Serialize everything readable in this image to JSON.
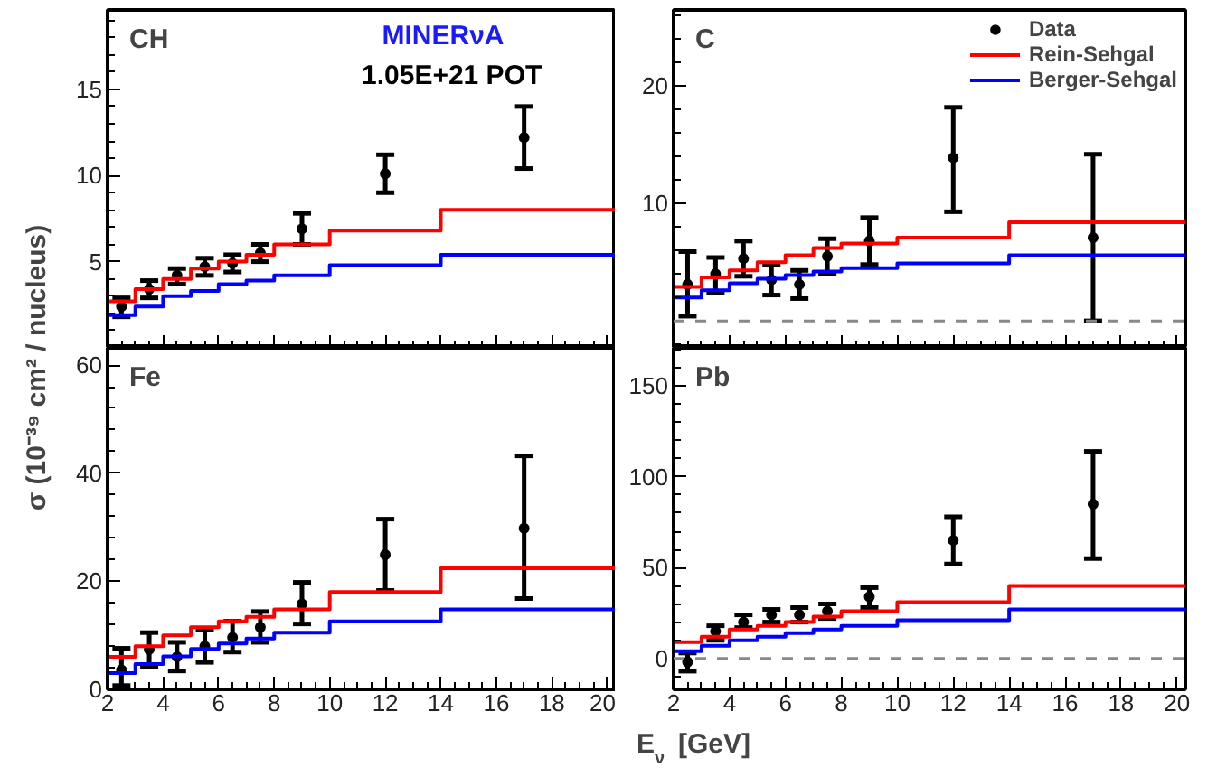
{
  "chart_data": [
    {
      "type": "step",
      "title": "CH",
      "annotations": [
        "MINERνA",
        "1.05E+21 POT"
      ],
      "xlabel": "E$_{ν}$ [GeV]",
      "ylabel": "σ (10⁻³⁹ cm² / nucleus)",
      "x": [
        2.5,
        3.5,
        4.5,
        5.5,
        6.5,
        7.5,
        9,
        12,
        17
      ],
      "xlim": [
        2,
        20.3
      ],
      "xticks": [
        2,
        4,
        6,
        8,
        10,
        12,
        14,
        16,
        18,
        20
      ],
      "ylim": [
        0,
        19.6
      ],
      "yticks": [
        5,
        10,
        15
      ],
      "tick_labels": "y",
      "grid": false,
      "legend": false,
      "series": [
        {
          "type": "scatter",
          "marker": "circle",
          "color": "#000000",
          "values": [
            2.4,
            3.4,
            4.2,
            4.7,
            4.9,
            5.5,
            6.9,
            10.1,
            12.2
          ],
          "errors": [
            [
              1.8,
              2.9
            ],
            [
              2.9,
              3.9
            ],
            [
              3.7,
              4.6
            ],
            [
              4.2,
              5.2
            ],
            [
              4.4,
              5.4
            ],
            [
              5.0,
              6.0
            ],
            [
              6.0,
              7.8
            ],
            [
              9.0,
              11.2
            ],
            [
              10.4,
              14.0
            ]
          ]
        },
        {
          "line_style": "solid",
          "color": "#ff0000",
          "x": [
            2,
            3,
            4,
            5,
            6,
            7,
            8,
            10,
            14,
            20.3
          ],
          "values": [
            2.7,
            3.4,
            4.0,
            4.6,
            5.0,
            5.4,
            6.0,
            6.8,
            8.0,
            8.0
          ]
        },
        {
          "line_style": "solid",
          "color": "#0000ff",
          "x": [
            2,
            3,
            4,
            5,
            6,
            7,
            8,
            10,
            14,
            20.3
          ],
          "values": [
            1.9,
            2.4,
            3.0,
            3.3,
            3.7,
            3.9,
            4.2,
            4.8,
            5.4,
            5.4
          ]
        }
      ]
    },
    {
      "type": "step",
      "title": "C",
      "x": [
        2.5,
        3.5,
        4.5,
        5.5,
        6.5,
        7.5,
        9,
        12,
        17
      ],
      "xlim": [
        2,
        20.3
      ],
      "xticks": [
        2,
        4,
        6,
        8,
        10,
        12,
        14,
        16,
        18,
        20
      ],
      "ylim": [
        -2.3,
        26.5
      ],
      "yticks": [
        10,
        20
      ],
      "tick_labels": "y",
      "grid": false,
      "legend": "top right",
      "ref_lines": [
        {
          "axis": "y",
          "value": 0,
          "color": "#888888",
          "line_style": "dashed"
        }
      ],
      "series": [
        {
          "type": "scatter",
          "marker": "circle",
          "name": "Data",
          "color": "#000000",
          "values": [
            3.1,
            4.0,
            5.3,
            3.5,
            3.1,
            5.5,
            6.8,
            13.9,
            7.1
          ],
          "errors": [
            [
              0.4,
              5.9
            ],
            [
              2.4,
              5.4
            ],
            [
              3.8,
              6.8
            ],
            [
              2.2,
              4.8
            ],
            [
              1.9,
              4.3
            ],
            [
              4.0,
              7.0
            ],
            [
              4.8,
              8.8
            ],
            [
              9.3,
              18.2
            ],
            [
              0,
              14.2
            ]
          ]
        },
        {
          "line_style": "solid",
          "name": "Rein-Sehgal",
          "color": "#ff0000",
          "x": [
            2,
            3,
            4,
            5,
            6,
            7,
            8,
            10,
            14,
            20.3
          ],
          "values": [
            2.9,
            3.7,
            4.3,
            5.0,
            5.6,
            6.2,
            6.6,
            7.1,
            8.4,
            8.4
          ]
        },
        {
          "line_style": "solid",
          "name": "Berger-Sehgal",
          "color": "#0000ff",
          "x": [
            2,
            3,
            4,
            5,
            6,
            7,
            8,
            10,
            14,
            20.3
          ],
          "values": [
            2.0,
            2.6,
            3.2,
            3.6,
            3.9,
            4.2,
            4.5,
            4.9,
            5.6,
            5.6
          ]
        }
      ]
    },
    {
      "type": "step",
      "title": "Fe",
      "x": [
        2.5,
        3.5,
        4.5,
        5.5,
        6.5,
        7.5,
        9,
        12,
        17
      ],
      "xlim": [
        2,
        20.3
      ],
      "xticks": [
        2,
        4,
        6,
        8,
        10,
        12,
        14,
        16,
        18,
        20
      ],
      "ylim": [
        0,
        63.2
      ],
      "yticks": [
        0,
        20,
        40,
        60
      ],
      "grid": false,
      "legend": false,
      "series": [
        {
          "type": "scatter",
          "marker": "circle",
          "color": "#000000",
          "values": [
            3.6,
            7.4,
            6.0,
            8.0,
            9.6,
            11.5,
            15.8,
            24.9,
            29.8
          ],
          "errors": [
            [
              0.7,
              7.6
            ],
            [
              4.2,
              10.5
            ],
            [
              3.4,
              8.7
            ],
            [
              5.0,
              11.0
            ],
            [
              6.9,
              12.6
            ],
            [
              8.7,
              14.4
            ],
            [
              12.1,
              19.8
            ],
            [
              18.3,
              31.5
            ],
            [
              16.8,
              43.2
            ]
          ]
        },
        {
          "line_style": "solid",
          "color": "#ff0000",
          "x": [
            2,
            3,
            4,
            5,
            6,
            7,
            8,
            10,
            14,
            20.3
          ],
          "values": [
            6,
            8,
            10,
            11.5,
            12.6,
            13.4,
            14.8,
            18,
            22.4,
            22.4
          ]
        },
        {
          "line_style": "solid",
          "color": "#0000ff",
          "x": [
            2,
            3,
            4,
            5,
            6,
            7,
            8,
            10,
            14,
            20.3
          ],
          "values": [
            3,
            4.7,
            6.1,
            7.5,
            8.5,
            9.4,
            10.5,
            12.6,
            14.8,
            14.8
          ]
        }
      ]
    },
    {
      "type": "step",
      "title": "Pb",
      "x": [
        2.5,
        3.5,
        4.5,
        5.5,
        6.5,
        7.5,
        9,
        12,
        17
      ],
      "xlim": [
        2,
        20.3
      ],
      "xticks": [
        2,
        4,
        6,
        8,
        10,
        12,
        14,
        16,
        18,
        20
      ],
      "ylim": [
        -17,
        171
      ],
      "yticks": [
        0,
        50,
        100,
        150
      ],
      "grid": false,
      "legend": false,
      "ref_lines": [
        {
          "axis": "y",
          "value": 0,
          "color": "#888888",
          "line_style": "dashed"
        }
      ],
      "series": [
        {
          "type": "scatter",
          "marker": "circle",
          "color": "#000000",
          "values": [
            -2,
            15,
            20,
            24,
            24,
            26,
            34,
            65,
            85
          ],
          "errors": [
            [
              -7,
              3
            ],
            [
              10,
              18
            ],
            [
              17,
              24
            ],
            [
              20,
              27
            ],
            [
              20,
              28
            ],
            [
              22,
              30
            ],
            [
              28,
              39
            ],
            [
              52,
              78
            ],
            [
              55,
              114
            ]
          ]
        },
        {
          "line_style": "solid",
          "color": "#ff0000",
          "x": [
            2,
            3,
            4,
            5,
            6,
            7,
            8,
            10,
            14,
            20.3
          ],
          "values": [
            9,
            12,
            16,
            18,
            20,
            23,
            26,
            31,
            40,
            40
          ]
        },
        {
          "line_style": "solid",
          "color": "#0000ff",
          "x": [
            2,
            3,
            4,
            5,
            6,
            7,
            8,
            10,
            14,
            20.3
          ],
          "values": [
            4,
            7,
            10,
            12,
            14,
            16,
            18,
            21,
            27,
            27
          ]
        }
      ]
    }
  ]
}
